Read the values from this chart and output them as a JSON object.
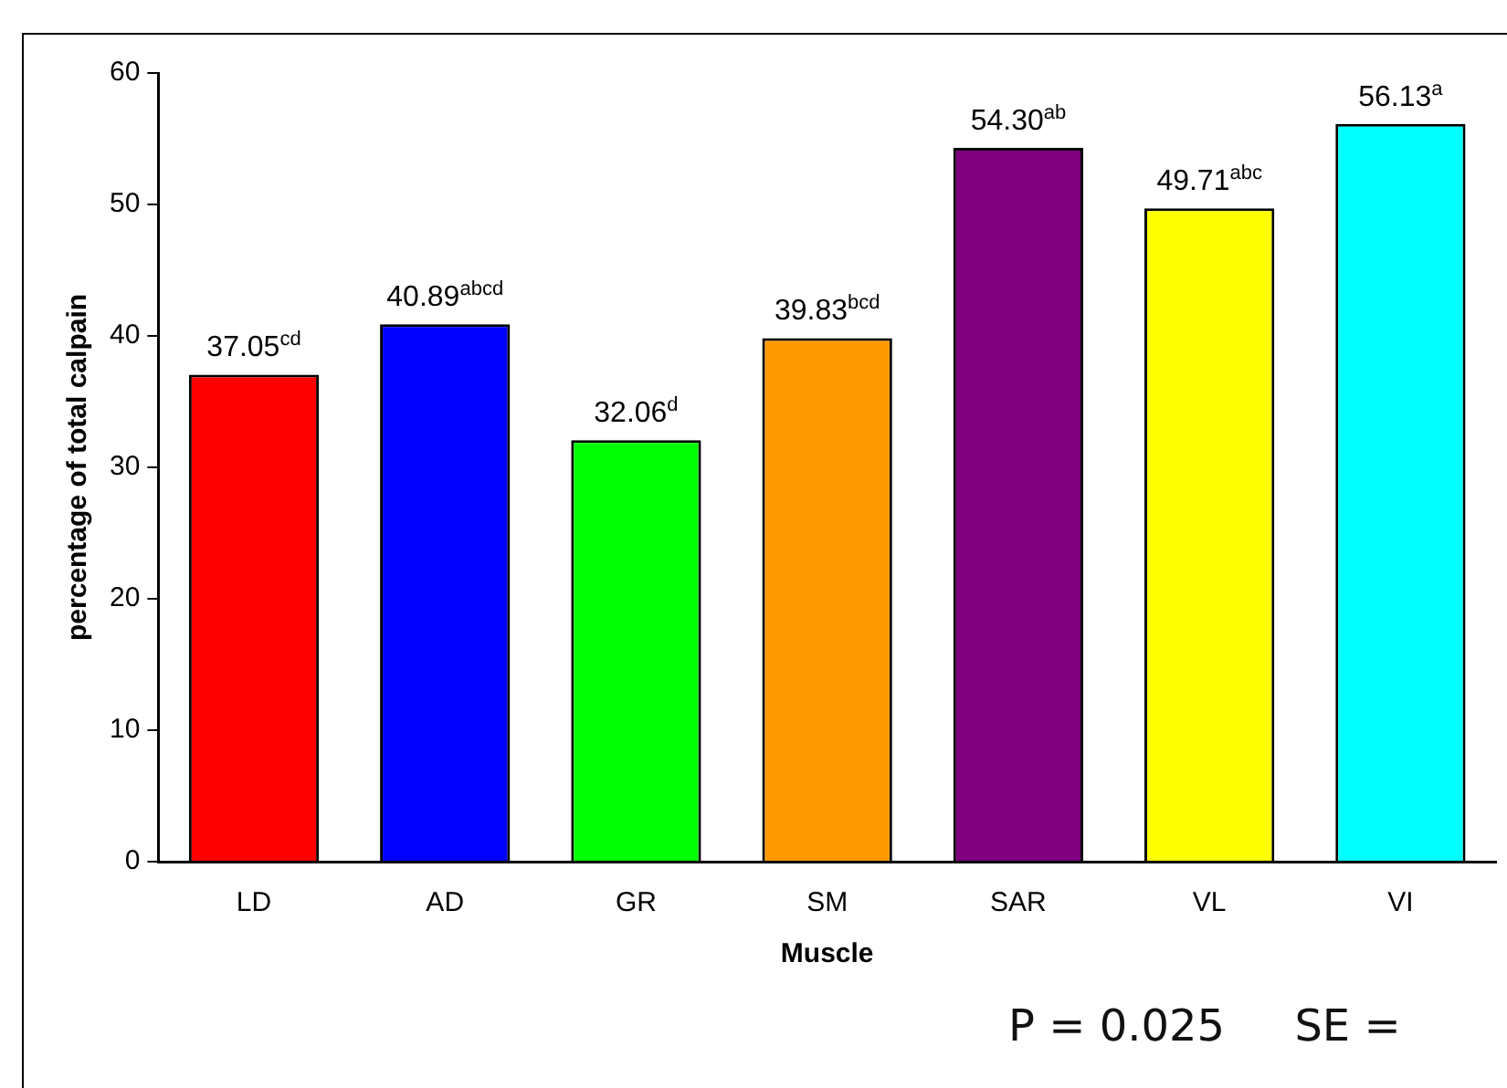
{
  "chart_data": {
    "type": "bar",
    "xlabel": "Muscle",
    "ylabel": "percentage of total calpain",
    "categories": [
      "LD",
      "AD",
      "GR",
      "SM",
      "SAR",
      "VL",
      "VI"
    ],
    "values": [
      37.05,
      40.89,
      32.06,
      39.83,
      54.3,
      49.71,
      56.13
    ],
    "colors": [
      "#ff0000",
      "#0000ff",
      "#00ff00",
      "#ff9900",
      "#800080",
      "#ffff00",
      "#00ffff"
    ],
    "value_labels": [
      "37.05$^{cd}$",
      "40.89$^{abcd}$",
      "32.06$^{d}$",
      "39.83$^{bcd}$",
      "54.30$^{ab}$",
      "49.71$^{abc}$",
      "56.13$^{a}$"
    ],
    "ylim": [
      0,
      60
    ],
    "yticks": [
      0,
      10,
      20,
      30,
      40,
      50,
      60
    ],
    "grid": false,
    "legend": false,
    "annotations": [
      "P = 0.025     SE ="
    ]
  }
}
